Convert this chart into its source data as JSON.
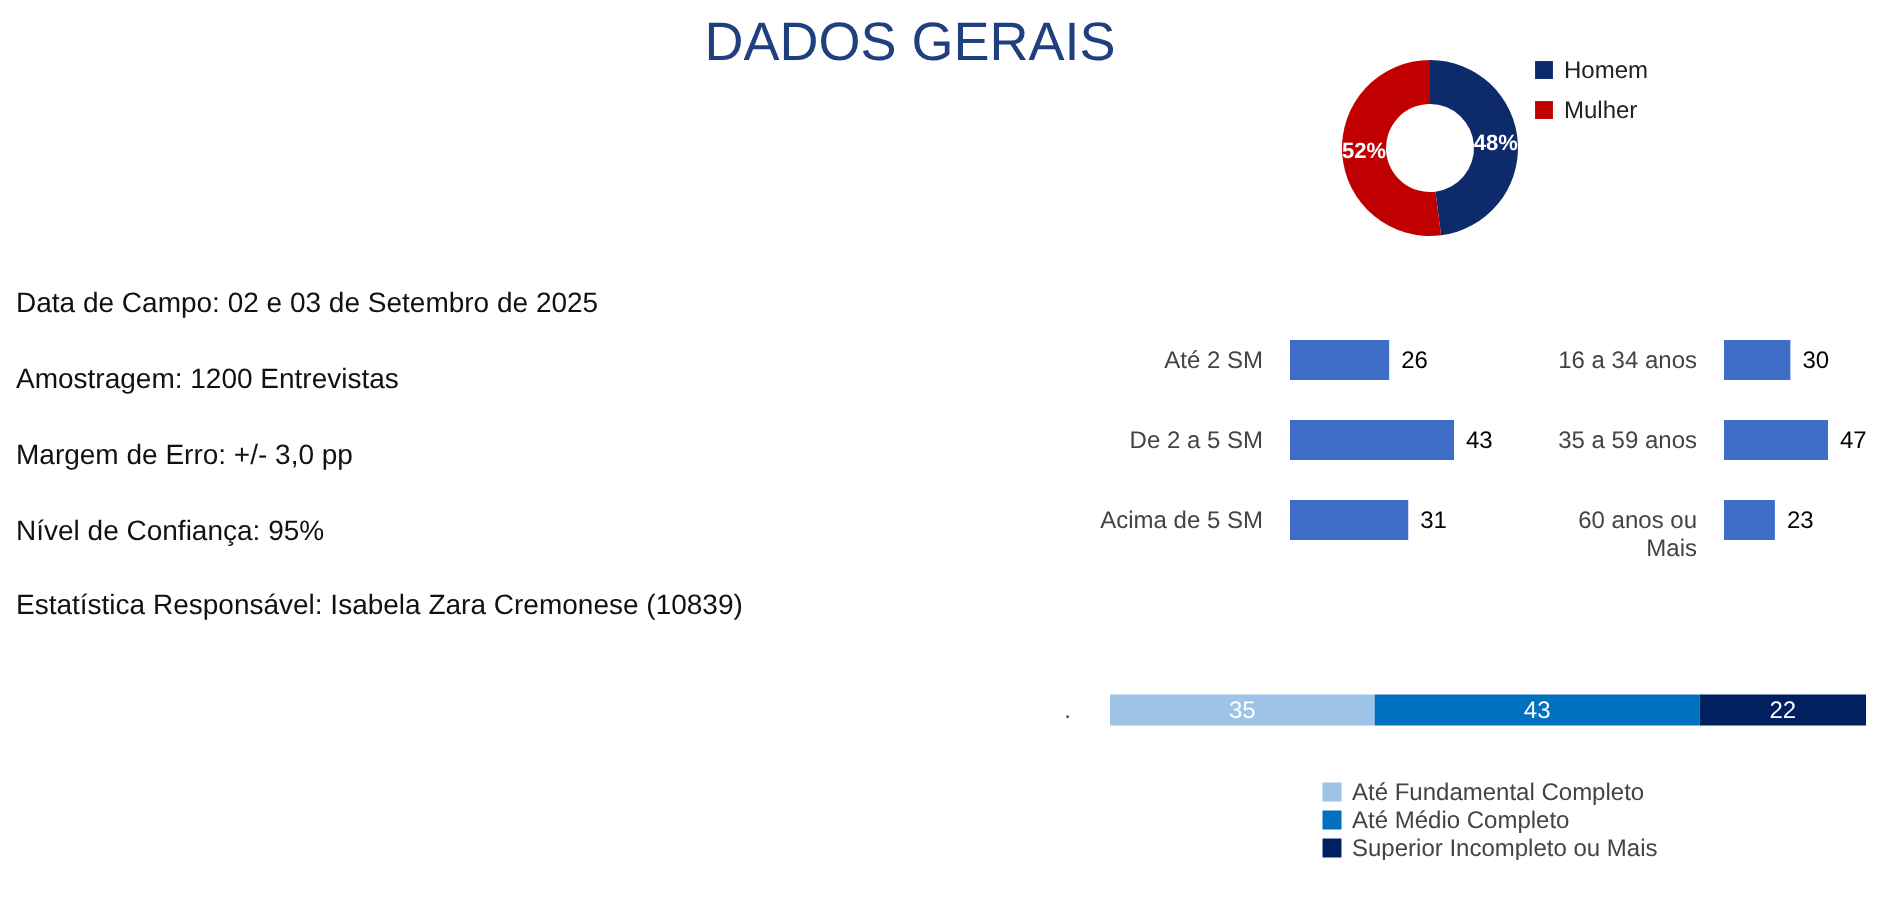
{
  "chart_data": [
    {
      "type": "other",
      "title": "DADOS GERAIS",
      "annotations": [
        "Data de Campo: 02 e 03 de Setembro de 2025",
        "Amostragem: 1200 Entrevistas",
        "Margem de Erro: +/- 3,0 pp",
        "Nível de Confiança: 95%",
        "Estatística Responsável: Isabela Zara Cremonese (10839)"
      ]
    },
    {
      "type": "donut",
      "categories": [
        "Homem",
        "Mulher"
      ],
      "values": [
        48,
        52
      ],
      "colors": [
        "#0d2a6b",
        "#c00000"
      ],
      "value_labels": [
        "48%",
        "52%"
      ],
      "legend": "right"
    },
    {
      "type": "bar",
      "orientation": "horizontal",
      "categories": [
        "Até 2 SM",
        "De 2 a 5 SM",
        "Acima de 5 SM"
      ],
      "values": [
        26,
        43,
        31
      ],
      "color": "#3f6ec8",
      "data_labels": true,
      "tick_labels": "y"
    },
    {
      "type": "bar",
      "orientation": "horizontal",
      "categories": [
        "16 a 34 anos",
        "35 a 59 anos",
        "60 anos ou Mais"
      ],
      "values": [
        30,
        47,
        23
      ],
      "color": "#3f6ec8",
      "data_labels": true,
      "tick_labels": "y"
    },
    {
      "type": "bar",
      "orientation": "horizontal",
      "stacked": true,
      "categories": [
        "."
      ],
      "series": [
        {
          "name": "Até Fundamental Completo",
          "color": "#9dc3e6",
          "values": [
            35
          ]
        },
        {
          "name": "Até Médio Completo",
          "color": "#0070c0",
          "values": [
            43
          ]
        },
        {
          "name": "Superior Incompleto ou Mais",
          "color": "#002060",
          "values": [
            22
          ]
        }
      ],
      "data_labels": true,
      "legend": "bottom",
      "tick_labels": "y"
    }
  ]
}
